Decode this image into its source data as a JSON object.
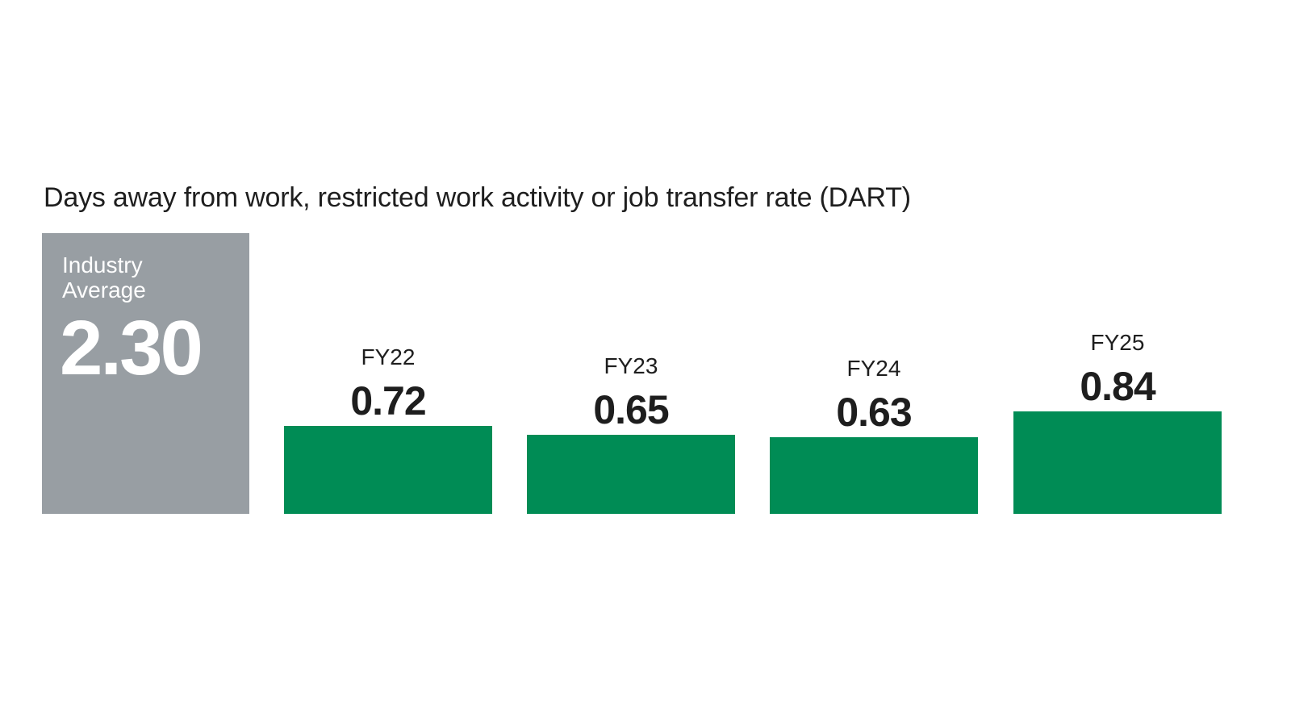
{
  "chart_data": {
    "type": "bar",
    "title": "Days away from work, restricted work activity or job transfer rate (DART)",
    "benchmark": {
      "label_line1": "Industry",
      "label_line2": "Average",
      "value": "2.30",
      "color": "#989ea3"
    },
    "categories": [
      "FY22",
      "FY23",
      "FY24",
      "FY25"
    ],
    "values": [
      0.72,
      0.65,
      0.63,
      0.84
    ],
    "value_labels": [
      "0.72",
      "0.65",
      "0.63",
      "0.84"
    ],
    "bar_color": "#008c55",
    "grid": false
  }
}
